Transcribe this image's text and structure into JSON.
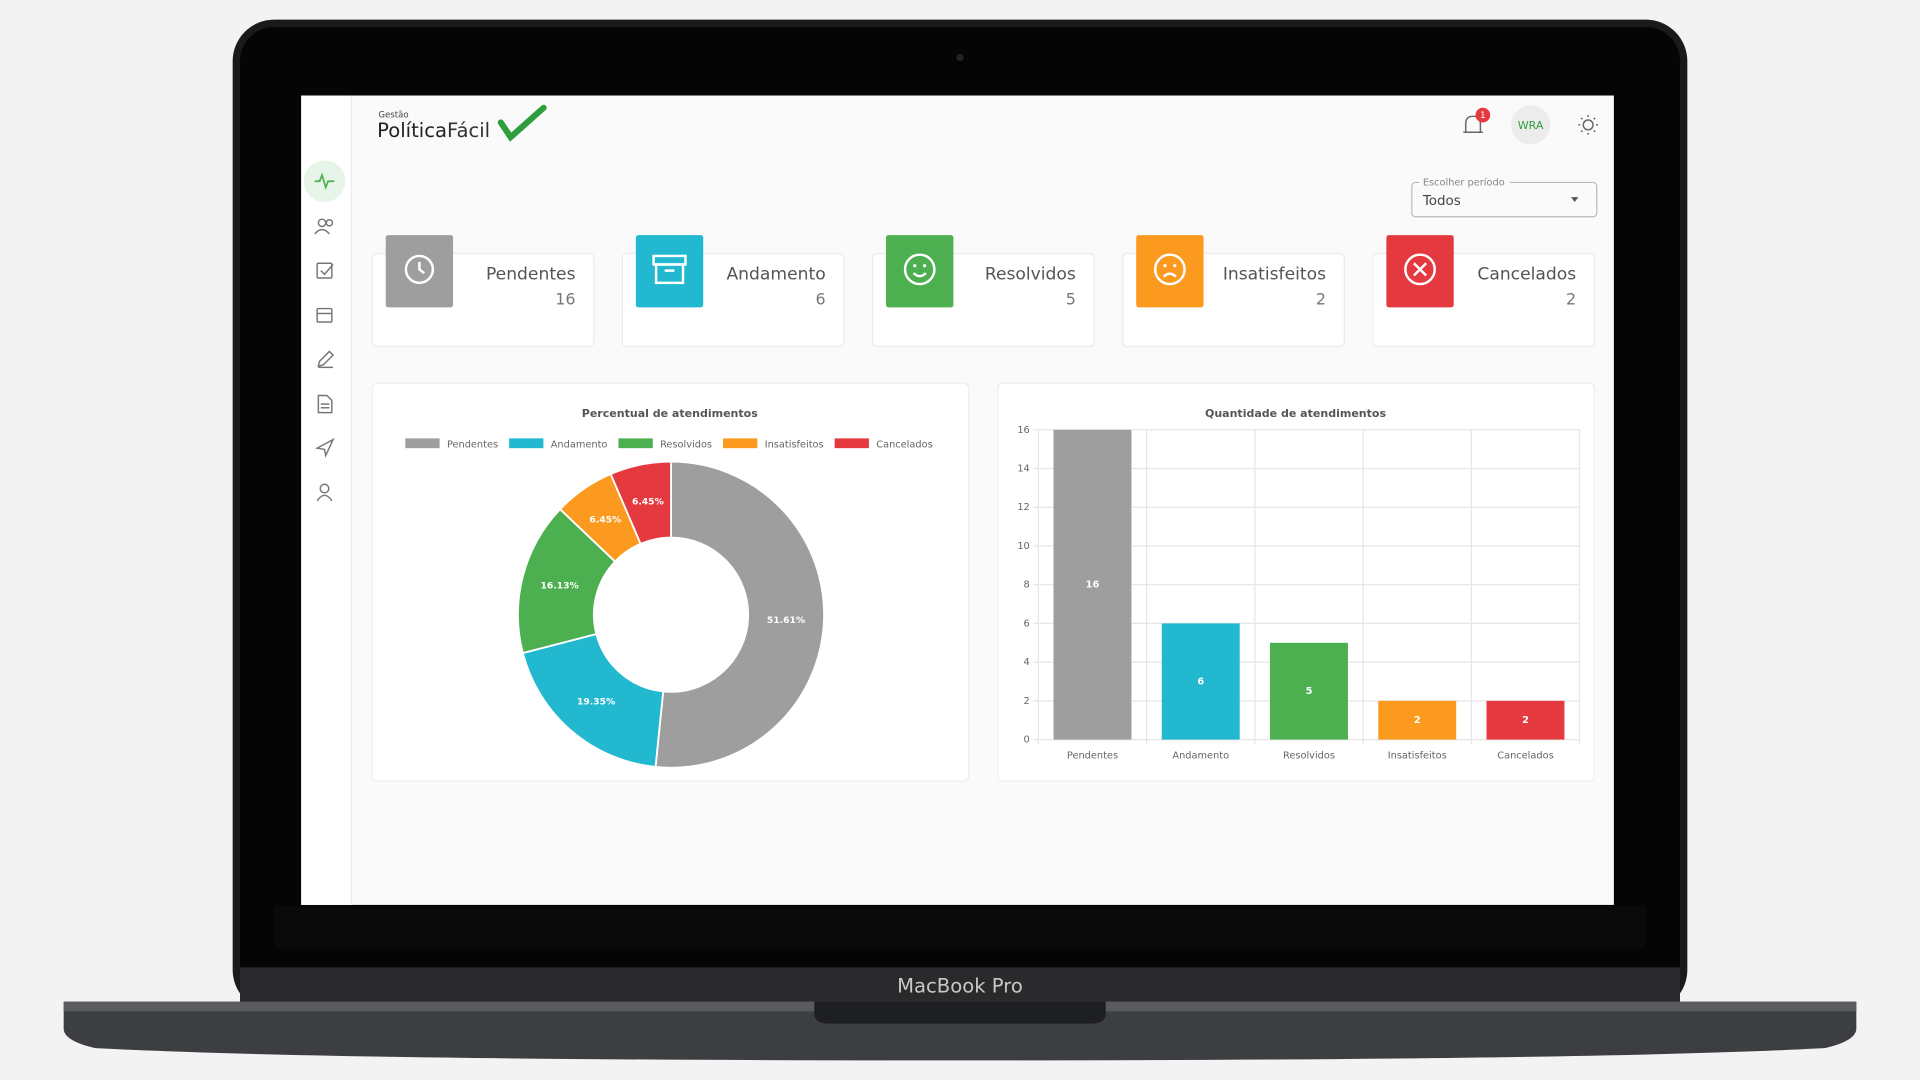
{
  "device_label": "MacBook Pro",
  "header": {
    "logo_small": "Gestão",
    "logo_main": "Política",
    "logo_accent": "Fácil",
    "notifications": "1",
    "avatar": "WRA"
  },
  "filter": {
    "label": "Escolher período",
    "value": "Todos"
  },
  "cards": [
    {
      "label": "Pendentes",
      "value": "16",
      "color": "#9e9e9e"
    },
    {
      "label": "Andamento",
      "value": "6",
      "color": "#22b8cf"
    },
    {
      "label": "Resolvidos",
      "value": "5",
      "color": "#4caf50"
    },
    {
      "label": "Insatisfeitos",
      "value": "2",
      "color": "#fb9a1e"
    },
    {
      "label": "Cancelados",
      "value": "2",
      "color": "#e53940"
    }
  ],
  "chart_data": [
    {
      "type": "doughnut",
      "title": "Percentual de atendimentos",
      "categories": [
        "Pendentes",
        "Andamento",
        "Resolvidos",
        "Insatisfeitos",
        "Cancelados"
      ],
      "values": [
        51.61,
        19.35,
        16.13,
        6.45,
        6.45
      ],
      "value_labels": [
        "51.61%",
        "19.35%",
        "16.13%",
        "6.45%",
        "6.45%"
      ],
      "colors": [
        "#9e9e9e",
        "#22b8cf",
        "#4caf50",
        "#fb9a1e",
        "#e53940"
      ],
      "legend": "top"
    },
    {
      "type": "bar",
      "title": "Quantidade de atendimentos",
      "categories": [
        "Pendentes",
        "Andamento",
        "Resolvidos",
        "Insatisfeitos",
        "Cancelados"
      ],
      "values": [
        16,
        6,
        5,
        2,
        2
      ],
      "colors": [
        "#9e9e9e",
        "#22b8cf",
        "#4caf50",
        "#fb9a1e",
        "#e53940"
      ],
      "ylim": [
        0,
        16
      ],
      "yticks": [
        0,
        2,
        4,
        6,
        8,
        10,
        12,
        14,
        16
      ],
      "grid": true
    }
  ]
}
